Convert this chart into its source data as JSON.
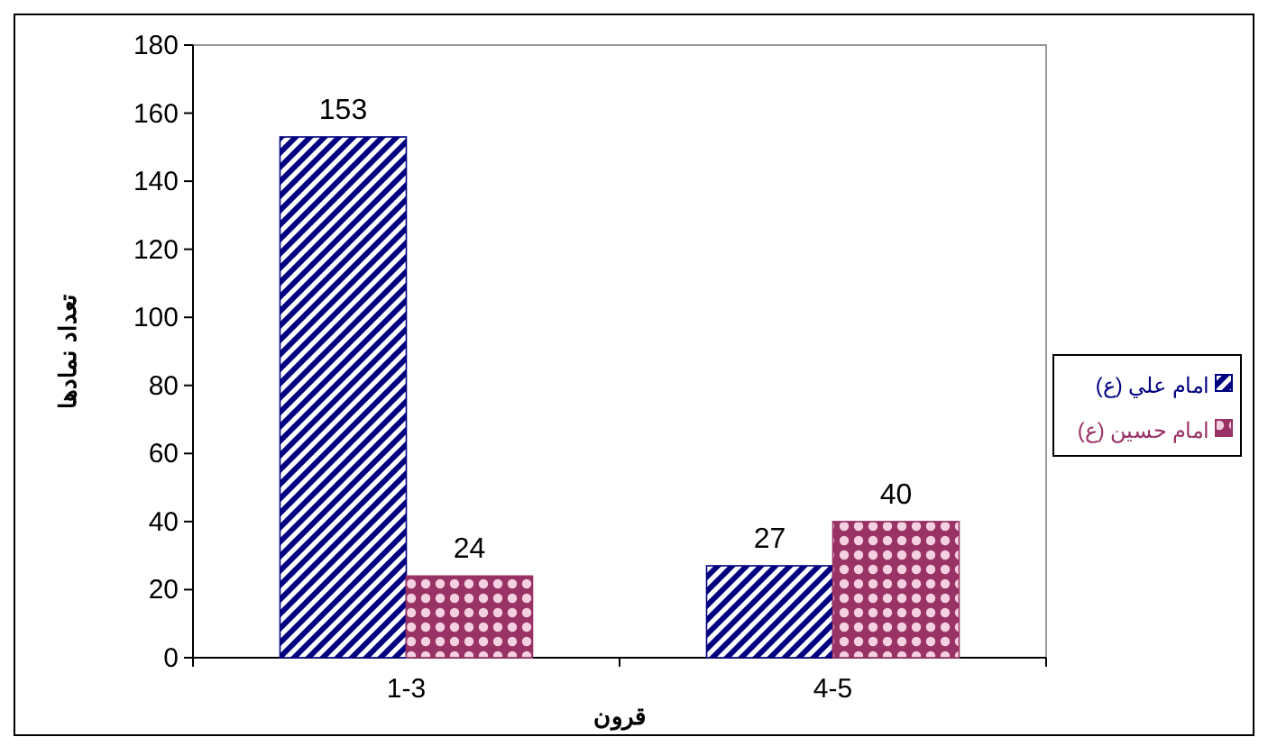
{
  "chart_data": {
    "type": "bar",
    "categories": [
      "1-3",
      "4-5"
    ],
    "series": [
      {
        "name": "امام علي (ع)",
        "color": "#000080",
        "values": [
          153,
          27
        ]
      },
      {
        "name": "امام حسين (ع)",
        "color": "#993366",
        "values": [
          24,
          40
        ]
      }
    ],
    "xlabel": "قرون",
    "ylabel": "تعداد نمادها",
    "ylim": [
      0,
      180
    ],
    "yticks": [
      0,
      20,
      40,
      60,
      80,
      100,
      120,
      140,
      160,
      180
    ],
    "data_labels": true,
    "legend": "right",
    "grid": false
  }
}
